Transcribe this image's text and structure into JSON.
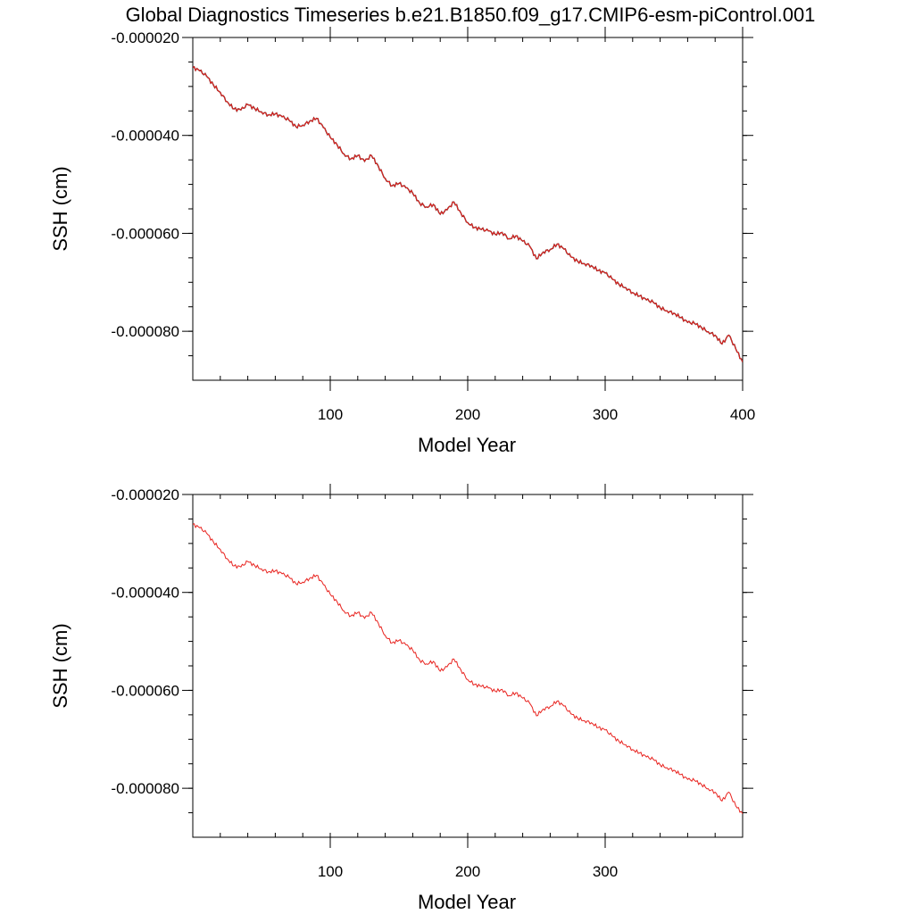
{
  "figure": {
    "title": "Global Diagnostics Timeseries b.e21.B1850.f09_g17.CMIP6-esm-piControl.001"
  },
  "chart_data": [
    {
      "type": "line",
      "xlabel": "Model Year",
      "ylabel": "SSH (cm)",
      "xlim": [
        0,
        400
      ],
      "ylim": [
        -9e-05,
        -2e-05
      ],
      "xticks": [
        100,
        200,
        300,
        400
      ],
      "xtick_labels": [
        "100",
        "200",
        "300",
        "400"
      ],
      "yticks": [
        -2e-05,
        -4e-05,
        -6e-05,
        -8e-05
      ],
      "ytick_labels": [
        "-0.000020",
        "-0.000040",
        "-0.000060",
        "-0.000080"
      ],
      "grid": false,
      "series": [
        {
          "color": "#3a1a1a",
          "x": [
            0,
            5,
            10,
            15,
            20,
            25,
            30,
            35,
            40,
            45,
            50,
            55,
            60,
            65,
            70,
            75,
            80,
            85,
            90,
            95,
            100,
            105,
            110,
            115,
            120,
            125,
            130,
            135,
            140,
            145,
            150,
            155,
            160,
            165,
            170,
            175,
            180,
            185,
            190,
            195,
            200,
            205,
            210,
            215,
            220,
            225,
            230,
            235,
            240,
            245,
            250,
            255,
            260,
            265,
            270,
            275,
            280,
            285,
            290,
            295,
            300,
            305,
            310,
            315,
            320,
            325,
            330,
            335,
            340,
            345,
            350,
            355,
            360,
            365,
            370,
            375,
            380,
            385,
            390,
            395,
            400
          ],
          "y": [
            -2.61e-05,
            -2.68e-05,
            -2.79e-05,
            -2.97e-05,
            -3.12e-05,
            -3.31e-05,
            -3.46e-05,
            -3.48e-05,
            -3.37e-05,
            -3.45e-05,
            -3.52e-05,
            -3.58e-05,
            -3.56e-05,
            -3.62e-05,
            -3.69e-05,
            -3.82e-05,
            -3.79e-05,
            -3.71e-05,
            -3.65e-05,
            -3.84e-05,
            -4.04e-05,
            -4.19e-05,
            -4.38e-05,
            -4.48e-05,
            -4.41e-05,
            -4.53e-05,
            -4.41e-05,
            -4.63e-05,
            -4.88e-05,
            -5.03e-05,
            -4.98e-05,
            -5.07e-05,
            -5.18e-05,
            -5.38e-05,
            -5.46e-05,
            -5.41e-05,
            -5.61e-05,
            -5.52e-05,
            -5.36e-05,
            -5.58e-05,
            -5.78e-05,
            -5.88e-05,
            -5.92e-05,
            -5.95e-05,
            -6.02e-05,
            -5.98e-05,
            -6.11e-05,
            -6.05e-05,
            -6.16e-05,
            -6.26e-05,
            -6.52e-05,
            -6.38e-05,
            -6.33e-05,
            -6.22e-05,
            -6.32e-05,
            -6.48e-05,
            -6.57e-05,
            -6.62e-05,
            -6.66e-05,
            -6.76e-05,
            -6.81e-05,
            -6.93e-05,
            -7.04e-05,
            -7.11e-05,
            -7.21e-05,
            -7.28e-05,
            -7.36e-05,
            -7.41e-05,
            -7.52e-05,
            -7.58e-05,
            -7.63e-05,
            -7.72e-05,
            -7.82e-05,
            -7.84e-05,
            -7.92e-05,
            -8.01e-05,
            -8.08e-05,
            -8.26e-05,
            -8.08e-05,
            -8.36e-05,
            -8.63e-05
          ]
        },
        {
          "color": "#e8231f",
          "x": [
            0,
            5,
            10,
            15,
            20,
            25,
            30,
            35,
            40,
            45,
            50,
            55,
            60,
            65,
            70,
            75,
            80,
            85,
            90,
            95,
            100,
            105,
            110,
            115,
            120,
            125,
            130,
            135,
            140,
            145,
            150,
            155,
            160,
            165,
            170,
            175,
            180,
            185,
            190,
            195,
            200,
            205,
            210,
            215,
            220,
            225,
            230,
            235,
            240,
            245,
            250,
            255,
            260,
            265,
            270,
            275,
            280,
            285,
            290,
            295,
            300,
            305,
            310,
            315,
            320,
            325,
            330,
            335,
            340,
            345,
            350,
            355,
            360,
            365,
            370,
            375,
            380,
            385,
            390,
            395,
            400
          ],
          "y": [
            -2.61e-05,
            -2.68e-05,
            -2.79e-05,
            -2.97e-05,
            -3.12e-05,
            -3.31e-05,
            -3.46e-05,
            -3.48e-05,
            -3.37e-05,
            -3.45e-05,
            -3.52e-05,
            -3.58e-05,
            -3.56e-05,
            -3.62e-05,
            -3.69e-05,
            -3.82e-05,
            -3.79e-05,
            -3.71e-05,
            -3.65e-05,
            -3.84e-05,
            -4.04e-05,
            -4.19e-05,
            -4.38e-05,
            -4.48e-05,
            -4.41e-05,
            -4.53e-05,
            -4.41e-05,
            -4.63e-05,
            -4.88e-05,
            -5.03e-05,
            -4.98e-05,
            -5.07e-05,
            -5.18e-05,
            -5.38e-05,
            -5.46e-05,
            -5.41e-05,
            -5.61e-05,
            -5.52e-05,
            -5.36e-05,
            -5.58e-05,
            -5.78e-05,
            -5.88e-05,
            -5.92e-05,
            -5.95e-05,
            -6.02e-05,
            -5.98e-05,
            -6.11e-05,
            -6.05e-05,
            -6.16e-05,
            -6.26e-05,
            -6.52e-05,
            -6.38e-05,
            -6.33e-05,
            -6.22e-05,
            -6.32e-05,
            -6.48e-05,
            -6.57e-05,
            -6.62e-05,
            -6.66e-05,
            -6.76e-05,
            -6.81e-05,
            -6.93e-05,
            -7.04e-05,
            -7.11e-05,
            -7.21e-05,
            -7.28e-05,
            -7.36e-05,
            -7.41e-05,
            -7.52e-05,
            -7.58e-05,
            -7.63e-05,
            -7.72e-05,
            -7.82e-05,
            -7.84e-05,
            -7.92e-05,
            -8.01e-05,
            -8.08e-05,
            -8.26e-05,
            -8.08e-05,
            -8.36e-05,
            -8.63e-05
          ]
        }
      ]
    },
    {
      "type": "line",
      "xlabel": "Model Year",
      "ylabel": "SSH (cm)",
      "xlim": [
        0,
        400
      ],
      "ylim": [
        -9e-05,
        -2e-05
      ],
      "xticks": [
        100,
        200,
        300
      ],
      "xtick_labels": [
        "100",
        "200",
        "300"
      ],
      "yticks": [
        -2e-05,
        -4e-05,
        -6e-05,
        -8e-05
      ],
      "ytick_labels": [
        "-0.000020",
        "-0.000040",
        "-0.000060",
        "-0.000080"
      ],
      "grid": false,
      "series": [
        {
          "color": "#e8231f",
          "x": [
            0,
            5,
            10,
            15,
            20,
            25,
            30,
            35,
            40,
            45,
            50,
            55,
            60,
            65,
            70,
            75,
            80,
            85,
            90,
            95,
            100,
            105,
            110,
            115,
            120,
            125,
            130,
            135,
            140,
            145,
            150,
            155,
            160,
            165,
            170,
            175,
            180,
            185,
            190,
            195,
            200,
            205,
            210,
            215,
            220,
            225,
            230,
            235,
            240,
            245,
            250,
            255,
            260,
            265,
            270,
            275,
            280,
            285,
            290,
            295,
            300,
            305,
            310,
            315,
            320,
            325,
            330,
            335,
            340,
            345,
            350,
            355,
            360,
            365,
            370,
            375,
            380,
            385,
            390,
            395,
            400
          ],
          "y": [
            -2.61e-05,
            -2.68e-05,
            -2.79e-05,
            -2.97e-05,
            -3.12e-05,
            -3.31e-05,
            -3.46e-05,
            -3.48e-05,
            -3.37e-05,
            -3.45e-05,
            -3.52e-05,
            -3.58e-05,
            -3.56e-05,
            -3.62e-05,
            -3.69e-05,
            -3.82e-05,
            -3.79e-05,
            -3.71e-05,
            -3.65e-05,
            -3.84e-05,
            -4.04e-05,
            -4.19e-05,
            -4.38e-05,
            -4.48e-05,
            -4.41e-05,
            -4.53e-05,
            -4.41e-05,
            -4.63e-05,
            -4.88e-05,
            -5.03e-05,
            -4.98e-05,
            -5.07e-05,
            -5.18e-05,
            -5.38e-05,
            -5.46e-05,
            -5.41e-05,
            -5.61e-05,
            -5.52e-05,
            -5.36e-05,
            -5.58e-05,
            -5.78e-05,
            -5.88e-05,
            -5.92e-05,
            -5.95e-05,
            -6.02e-05,
            -5.98e-05,
            -6.11e-05,
            -6.05e-05,
            -6.16e-05,
            -6.26e-05,
            -6.52e-05,
            -6.38e-05,
            -6.33e-05,
            -6.22e-05,
            -6.32e-05,
            -6.48e-05,
            -6.57e-05,
            -6.62e-05,
            -6.66e-05,
            -6.76e-05,
            -6.81e-05,
            -6.93e-05,
            -7.04e-05,
            -7.11e-05,
            -7.21e-05,
            -7.28e-05,
            -7.36e-05,
            -7.41e-05,
            -7.52e-05,
            -7.58e-05,
            -7.63e-05,
            -7.72e-05,
            -7.82e-05,
            -7.84e-05,
            -7.92e-05,
            -8.01e-05,
            -8.08e-05,
            -8.26e-05,
            -8.08e-05,
            -8.36e-05,
            -8.52e-05
          ]
        }
      ]
    }
  ]
}
